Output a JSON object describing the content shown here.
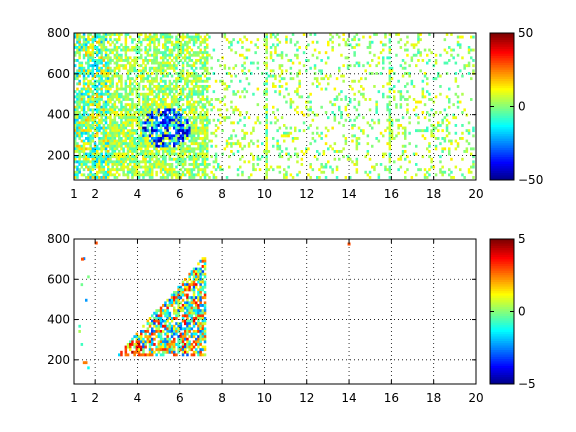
{
  "chart_data": [
    {
      "type": "heatmap",
      "title": "",
      "xlabel": "",
      "ylabel": "",
      "xlim": [
        1,
        20
      ],
      "ylim": [
        80,
        800
      ],
      "xticks": [
        "1",
        "2",
        "4",
        "6",
        "8",
        "10",
        "12",
        "14",
        "16",
        "18",
        "20"
      ],
      "yticks": [
        "200",
        "400",
        "600",
        "800"
      ],
      "grid": true,
      "grid_style": "dotted",
      "colormap": "jet",
      "clim": [
        -50,
        50
      ],
      "colorbar_ticks": [
        "50",
        "0",
        "−50"
      ],
      "pattern": {
        "seed": 11,
        "value_range": 50,
        "dense_x": [
          1,
          7.3
        ],
        "sparse_density": 0.16,
        "hotspot": {
          "x": 5.3,
          "y": 340,
          "min": -50,
          "max": 15
        },
        "stripe_x": [
          1.25,
          1.45,
          1.6,
          1.85,
          2.05,
          2.25,
          2.5,
          10.05,
          15.9
        ]
      }
    },
    {
      "type": "heatmap",
      "title": "",
      "xlabel": "",
      "ylabel": "",
      "xlim": [
        1,
        20
      ],
      "ylim": [
        80,
        800
      ],
      "xticks": [
        "1",
        "2",
        "4",
        "6",
        "8",
        "10",
        "12",
        "14",
        "16",
        "18",
        "20"
      ],
      "yticks": [
        "200",
        "400",
        "600",
        "800"
      ],
      "grid": true,
      "grid_style": "dotted",
      "colormap": "jet",
      "clim": [
        -5,
        5
      ],
      "colorbar_ticks": [
        "5",
        "0",
        "−5"
      ],
      "pattern": {
        "seed": 29,
        "value_range": 5,
        "blob_x": [
          3.0,
          7.2
        ],
        "blob_y": [
          220,
          760
        ],
        "isolated_points": [
          {
            "x": 14,
            "y": 775
          },
          {
            "x": 2.05,
            "y": 780
          },
          {
            "x": 1.4,
            "y": 700
          }
        ]
      }
    }
  ]
}
